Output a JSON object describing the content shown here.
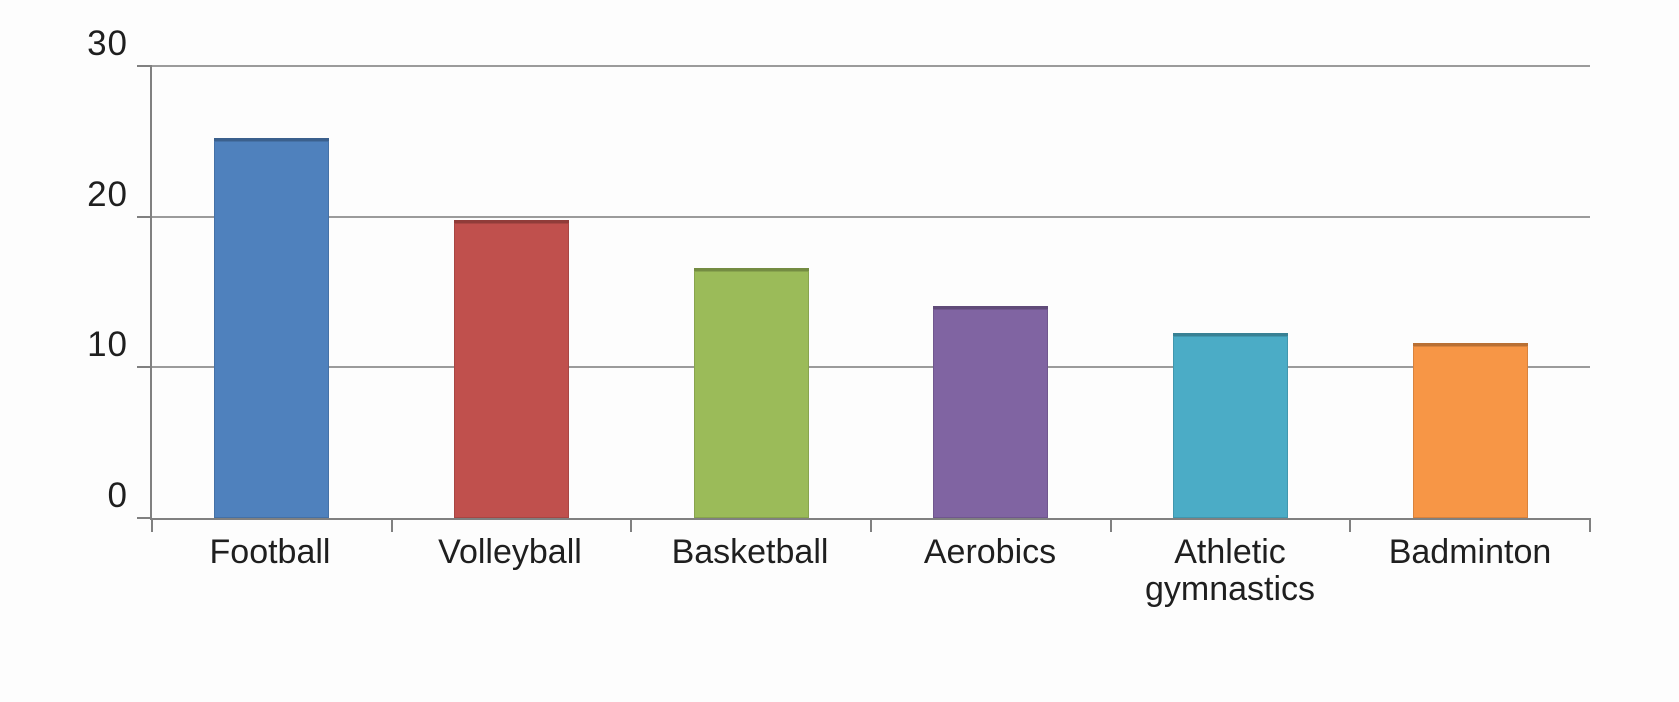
{
  "chart_data": {
    "type": "bar",
    "title": "",
    "xlabel": "",
    "ylabel": "",
    "categories": [
      "Football",
      "Volleyball",
      "Basketball",
      "Aerobics",
      "Athletic gymnastics",
      "Badminton"
    ],
    "values": [
      25.2,
      19.8,
      16.6,
      14.1,
      12.3,
      11.6
    ],
    "bar_colors": [
      "#4F81BD",
      "#C0504D",
      "#9BBB59",
      "#8064A2",
      "#4BACC6",
      "#F79646"
    ],
    "ylim": [
      0,
      30
    ],
    "yticks": [
      0,
      10,
      20,
      30
    ],
    "ytick_labels": [
      "0",
      "10",
      "20",
      "30"
    ],
    "grid": true,
    "legend_position": "none",
    "axis_color": "#808080",
    "gridline_color": "#9b9b9b",
    "text_color": "#1f1f1f",
    "background_color": "#fdfdfd"
  }
}
